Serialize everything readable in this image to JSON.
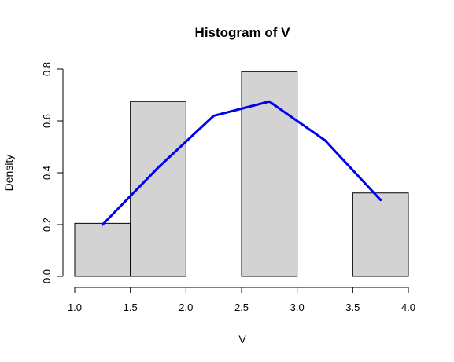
{
  "chart_data": {
    "type": "bar",
    "title": "Histogram of V",
    "xlabel": "V",
    "ylabel": "Density",
    "xlim": [
      1.0,
      4.0
    ],
    "ylim": [
      0.0,
      0.8
    ],
    "x_ticks": [
      "1.0",
      "1.5",
      "2.0",
      "2.5",
      "3.0",
      "3.5",
      "4.0"
    ],
    "y_ticks": [
      "0.0",
      "0.2",
      "0.4",
      "0.6",
      "0.8"
    ],
    "bins": [
      {
        "start": 1.0,
        "end": 1.5,
        "density": 0.205
      },
      {
        "start": 1.5,
        "end": 2.0,
        "density": 0.675
      },
      {
        "start": 2.0,
        "end": 2.5,
        "density": 0.0
      },
      {
        "start": 2.5,
        "end": 3.0,
        "density": 0.79
      },
      {
        "start": 3.0,
        "end": 3.5,
        "density": 0.0
      },
      {
        "start": 3.5,
        "end": 4.0,
        "density": 0.322
      }
    ],
    "density_line": {
      "x": [
        1.25,
        1.75,
        2.25,
        2.75,
        3.25,
        3.75
      ],
      "y": [
        0.2,
        0.42,
        0.62,
        0.675,
        0.525,
        0.295
      ]
    },
    "colors": {
      "bar_fill": "#d3d3d3",
      "bar_stroke": "#000000",
      "line": "#0000ee"
    },
    "grid": false
  }
}
